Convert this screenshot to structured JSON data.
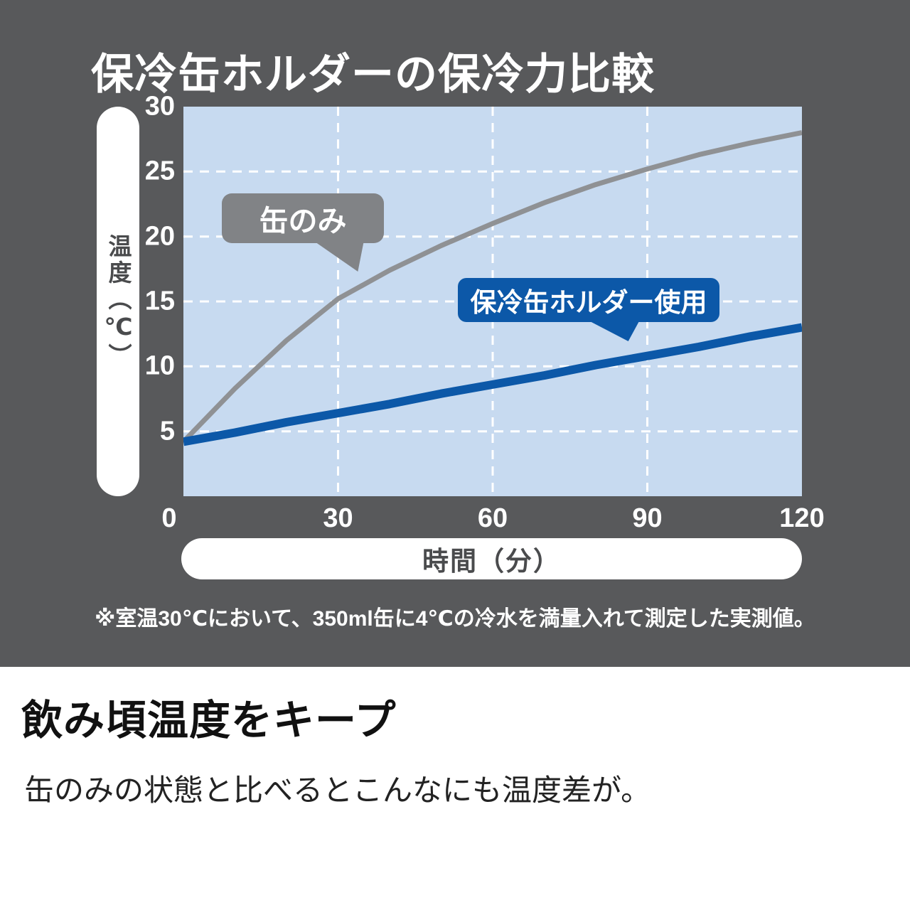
{
  "title": "保冷缶ホルダーの保冷力比較",
  "chart_data": {
    "type": "line",
    "x": [
      0,
      10,
      20,
      30,
      40,
      50,
      60,
      70,
      80,
      90,
      100,
      110,
      120
    ],
    "series": [
      {
        "name": "缶のみ",
        "color": "#8f9194",
        "values": [
          4.2,
          8.3,
          12.0,
          15.2,
          17.4,
          19.3,
          21.0,
          22.6,
          24.0,
          25.2,
          26.3,
          27.2,
          28.0
        ]
      },
      {
        "name": "保冷缶ホルダー使用",
        "color": "#0c58a8",
        "values": [
          4.2,
          4.9,
          5.7,
          6.4,
          7.1,
          7.9,
          8.6,
          9.3,
          10.1,
          10.8,
          11.5,
          12.3,
          13.0
        ]
      }
    ],
    "xlabel": "時間（分）",
    "ylabel": "温度（℃）",
    "xlim": [
      0,
      120
    ],
    "ylim": [
      0,
      30
    ],
    "xticks": [
      0,
      30,
      60,
      90,
      120
    ],
    "yticks": [
      0,
      5,
      10,
      15,
      20,
      25,
      30
    ],
    "grid": true,
    "grid_color": "#ffffff",
    "plot_bg": "#c7daf0",
    "legend_position": "in-plot callout bubbles"
  },
  "annotations": {
    "can_only_bg": "#818386",
    "holder_bg": "#0c58a8"
  },
  "footnote": "※室温30℃において、350ml缶に4℃の冷水を満量入れて測定した実測値。",
  "bottom": {
    "heading": "飲み頃温度をキープ",
    "body": "缶のみの状態と比べるとこんなにも温度差が。"
  },
  "colors": {
    "top_bg": "#58595b",
    "text_on_dark": "#ffffff",
    "pill_bg": "#ffffff",
    "pill_text": "#4a4b4d"
  }
}
